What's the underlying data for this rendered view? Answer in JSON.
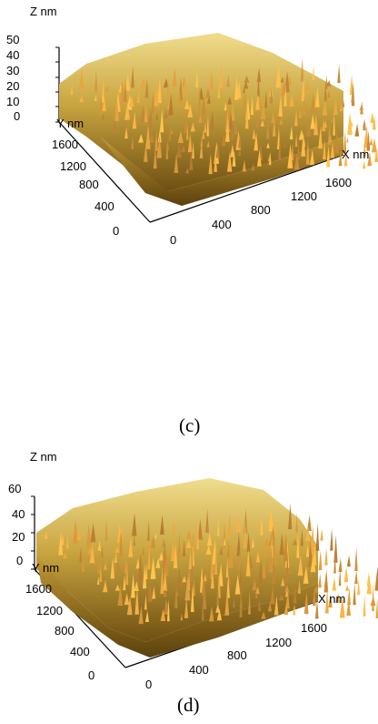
{
  "figures": [
    {
      "caption": "(c)",
      "z_label": "Z nm",
      "y_label": "Y nm",
      "x_label": "X nm",
      "z_ticks": [
        "50",
        "40",
        "30",
        "20",
        "10",
        "0"
      ],
      "y_ticks": [
        "1600",
        "1200",
        "800",
        "400",
        "0"
      ],
      "x_ticks": [
        "0",
        "400",
        "800",
        "1200",
        "1600"
      ],
      "surface_color": "#b8962f"
    },
    {
      "caption": "(d)",
      "z_label": "Z nm",
      "y_label": "Y nm",
      "x_label": "X nm",
      "z_ticks": [
        "60",
        "40",
        "20",
        "0"
      ],
      "y_ticks": [
        "1600",
        "1200",
        "800",
        "400",
        "0"
      ],
      "x_ticks": [
        "0",
        "400",
        "800",
        "1200",
        "1600"
      ],
      "surface_color": "#b8962f"
    }
  ]
}
